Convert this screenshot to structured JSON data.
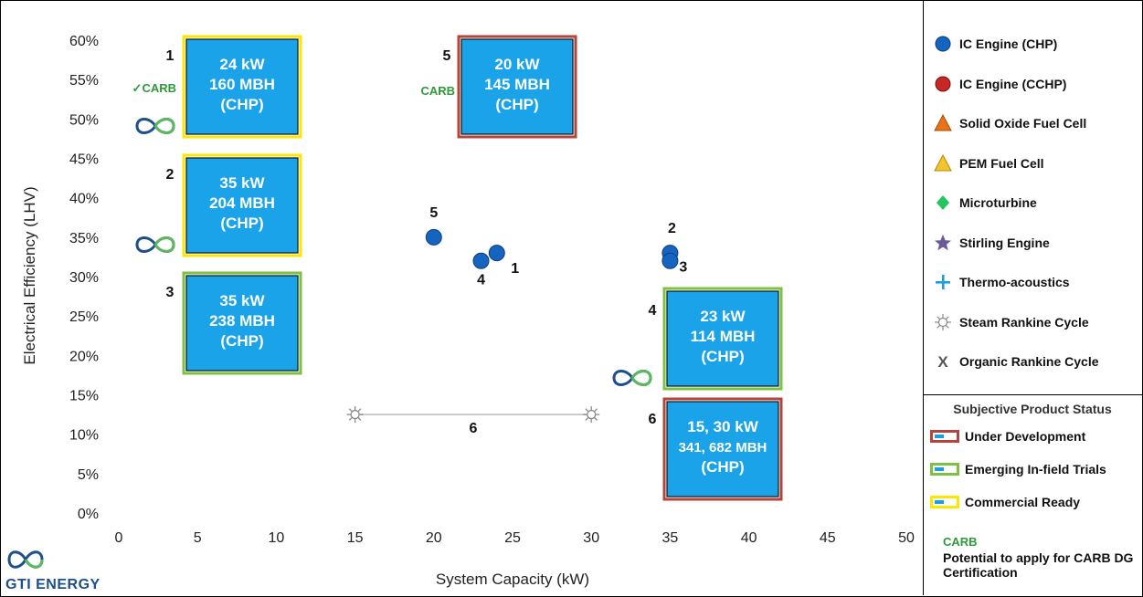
{
  "chart_data": {
    "type": "scatter",
    "title": "",
    "xlabel": "System Capacity (kW)",
    "ylabel": "Electrical Efficiency (LHV)",
    "xlim": [
      0,
      50
    ],
    "ylim": [
      0,
      60
    ],
    "x_ticks": [
      "0",
      "5",
      "10",
      "15",
      "20",
      "25",
      "30",
      "35",
      "40",
      "45",
      "50"
    ],
    "y_ticks": [
      "0%",
      "5%",
      "10%",
      "15%",
      "20%",
      "25%",
      "30%",
      "35%",
      "40%",
      "45%",
      "50%",
      "55%",
      "60%"
    ],
    "grid": false,
    "series": [
      {
        "name": "IC Engine (CHP)",
        "color": "#1565c0",
        "points": [
          {
            "label": "1",
            "x": 24,
            "y": 33
          },
          {
            "label": "2",
            "x": 35,
            "y": 33
          },
          {
            "label": "3",
            "x": 35,
            "y": 32
          },
          {
            "label": "4",
            "x": 23,
            "y": 32
          },
          {
            "label": "5",
            "x": 20,
            "y": 35
          }
        ]
      },
      {
        "name": "Steam Rankine Cycle",
        "color": "#888888",
        "points": [
          {
            "label": "6",
            "x": 15,
            "y": 12.5
          },
          {
            "label": "6",
            "x": 30,
            "y": 12.5
          }
        ],
        "range_label": "6"
      }
    ],
    "annotation_boxes": [
      {
        "number": "1",
        "lines": [
          "24 kW",
          "160 MBH",
          "(CHP)"
        ],
        "status": "Commercial Ready",
        "carb": "✓CARB",
        "logo": true
      },
      {
        "number": "2",
        "lines": [
          "35 kW",
          "204 MBH",
          "(CHP)"
        ],
        "status": "Commercial Ready",
        "carb": "",
        "logo": true
      },
      {
        "number": "3",
        "lines": [
          "35 kW",
          "238 MBH",
          "(CHP)"
        ],
        "status": "Emerging In-field Trials",
        "carb": "",
        "logo": false
      },
      {
        "number": "4",
        "lines": [
          "23 kW",
          "114 MBH",
          "(CHP)"
        ],
        "status": "Emerging In-field Trials",
        "carb": "",
        "logo": true
      },
      {
        "number": "5",
        "lines": [
          "20 kW",
          "145 MBH",
          "(CHP)"
        ],
        "status": "Under Development",
        "carb": "CARB",
        "logo": false
      },
      {
        "number": "6",
        "lines": [
          "15, 30 kW",
          "341, 682 MBH",
          "(CHP)"
        ],
        "status": "Under Development",
        "carb": "",
        "logo": false
      }
    ]
  },
  "legend": {
    "items": [
      {
        "label": "IC Engine (CHP)",
        "icon": "blue-circle-icon",
        "color": "#1565c0"
      },
      {
        "label": "IC Engine (CCHP)",
        "icon": "red-circle-icon",
        "color": "#c62828"
      },
      {
        "label": "Solid Oxide Fuel Cell",
        "icon": "orange-triangle-icon",
        "color": "#e8731a"
      },
      {
        "label": "PEM Fuel Cell",
        "icon": "yellow-triangle-icon",
        "color": "#f4c430"
      },
      {
        "label": "Microturbine",
        "icon": "green-diamond-icon",
        "color": "#22c55e"
      },
      {
        "label": "Stirling Engine",
        "icon": "purple-star-icon",
        "color": "#6a5a9a"
      },
      {
        "label": "Thermo-acoustics",
        "icon": "blue-plus-icon",
        "color": "#1a9fe0"
      },
      {
        "label": "Steam Rankine Cycle",
        "icon": "gear-sun-icon",
        "color": "#888888"
      },
      {
        "label": "Organic Rankine Cycle",
        "icon": "x-mark-icon",
        "color": "#555555"
      }
    ]
  },
  "status_legend": {
    "title": "Subjective Product Status",
    "items": [
      {
        "label": "Under Development",
        "color": "#b5443a"
      },
      {
        "label": "Emerging In-field Trials",
        "color": "#7dc142"
      },
      {
        "label": "Commercial Ready",
        "color": "#ffe600"
      }
    ]
  },
  "carb_note": {
    "tag": "CARB",
    "text": "Potential to apply for CARB DG Certification"
  },
  "brand": {
    "name": "GTI ENERGY"
  },
  "colors": {
    "box_fill": "#1aa3e8",
    "box_outline": "#111111"
  }
}
